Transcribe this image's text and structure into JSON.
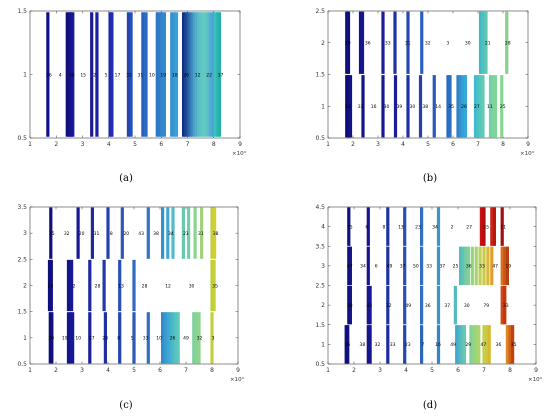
{
  "captions": [
    "(a)",
    "(b)",
    "(c)",
    "(d)"
  ],
  "chart_data": [
    {
      "type": "barcode",
      "xlim": [
        1,
        9
      ],
      "ylim": [
        0.5,
        1.5
      ],
      "xticks": [
        "1",
        "2",
        "3",
        "4",
        "5",
        "6",
        "7",
        "8",
        "9"
      ],
      "yticks": [
        "0.5",
        "1",
        "1.5"
      ],
      "x_exponent": "×10⁴",
      "rows": [
        {
          "y": 1,
          "labels": [
            "36",
            "4",
            "30",
            "15",
            "2",
            "5",
            "17",
            "32",
            "31",
            "10",
            "19",
            "18",
            "26",
            "12",
            "22",
            "37"
          ],
          "bars": [
            [
              1.68,
              "#10108a"
            ],
            [
              2.42,
              "#101078"
            ],
            [
              2.5,
              "#12127f"
            ],
            [
              2.56,
              "#141495"
            ],
            [
              2.63,
              "#181898"
            ],
            [
              3.35,
              "#1a1a9a"
            ],
            [
              3.55,
              "#1e1ea2"
            ],
            [
              4.05,
              "#1e24a8"
            ],
            [
              4.12,
              "#2030ac"
            ],
            [
              4.75,
              "#2244b2"
            ],
            [
              4.85,
              "#2450b8"
            ],
            [
              5.3,
              "#2860bc"
            ],
            [
              5.42,
              "#2a6cc2"
            ],
            [
              5.85,
              "#2c74c4"
            ],
            [
              5.93,
              "#2e7cc8"
            ],
            [
              6.02,
              "#3084cc"
            ],
            [
              6.12,
              "#328ace"
            ],
            [
              6.4,
              "#3490d0"
            ],
            [
              6.5,
              "#3698d2"
            ],
            [
              6.58,
              "#38a0d4"
            ],
            [
              6.85,
              "#123080"
            ],
            [
              6.93,
              "#1a4090"
            ],
            [
              7.02,
              "#2458a0"
            ],
            [
              7.1,
              "#3070b0"
            ],
            [
              7.18,
              "#3c88bc"
            ],
            [
              7.26,
              "#48a0c4"
            ],
            [
              7.34,
              "#50b0c8"
            ],
            [
              7.42,
              "#58bcc8"
            ],
            [
              7.5,
              "#5cc4c4"
            ],
            [
              7.58,
              "#60c8c0"
            ],
            [
              7.66,
              "#62ccbc"
            ],
            [
              7.74,
              "#60c4c8"
            ],
            [
              7.82,
              "#58b8d0"
            ],
            [
              7.9,
              "#50acd0"
            ],
            [
              7.98,
              "#48a4d0"
            ],
            [
              8.06,
              "#3ec0c0"
            ],
            [
              8.14,
              "#30b8b0"
            ],
            [
              8.22,
              "#28b0a8"
            ]
          ]
        }
      ]
    },
    {
      "type": "barcode",
      "xlim": [
        1,
        9
      ],
      "ylim": [
        0.5,
        2.5
      ],
      "xticks": [
        "1",
        "2",
        "3",
        "4",
        "5",
        "6",
        "7",
        "8",
        "9"
      ],
      "yticks": [
        "0.5",
        "1",
        "1.5",
        "2",
        "2.5"
      ],
      "x_exponent": "×10⁴",
      "rows": [
        {
          "y": 1,
          "labels": [
            "24",
            "33",
            "16",
            "30",
            "39",
            "30",
            "38",
            "14",
            "35",
            "26",
            "27",
            "11",
            "25"
          ],
          "bars": [
            [
              1.75,
              "#0c0c70"
            ],
            [
              1.8,
              "#0e0e78"
            ],
            [
              1.85,
              "#10107e"
            ],
            [
              1.9,
              "#121284"
            ],
            [
              2.4,
              "#14148a"
            ],
            [
              3.2,
              "#181892"
            ],
            [
              3.7,
              "#1c1c9a"
            ],
            [
              4.2,
              "#2030a4"
            ],
            [
              4.7,
              "#2440ac"
            ],
            [
              5.25,
              "#2858b8"
            ],
            [
              5.8,
              "#2a68c0"
            ],
            [
              5.88,
              "#2c70c4"
            ],
            [
              6.2,
              "#3080c8"
            ],
            [
              6.3,
              "#3290ce"
            ],
            [
              6.4,
              "#34a0d2"
            ],
            [
              6.5,
              "#36a8d4"
            ],
            [
              6.9,
              "#40b8cc"
            ],
            [
              7.0,
              "#4cc0c4"
            ],
            [
              7.1,
              "#58c8bc"
            ],
            [
              7.2,
              "#60ccb4"
            ],
            [
              7.5,
              "#70d0a8"
            ],
            [
              7.6,
              "#7cd4a0"
            ],
            [
              7.7,
              "#80d498"
            ],
            [
              7.95,
              "#88d490"
            ]
          ]
        },
        {
          "y": 2,
          "labels": [
            "20",
            "36",
            "33",
            "31",
            "32",
            "3",
            "30",
            "21",
            "28"
          ],
          "bars": [
            [
              1.75,
              "#0e0e78"
            ],
            [
              1.82,
              "#10107e"
            ],
            [
              2.3,
              "#14148a"
            ],
            [
              2.38,
              "#16168e"
            ],
            [
              3.2,
              "#1a2098"
            ],
            [
              3.68,
              "#1e34a2"
            ],
            [
              4.2,
              "#2448ae"
            ],
            [
              4.75,
              "#2a60bc"
            ],
            [
              7.1,
              "#40b8c8"
            ],
            [
              7.2,
              "#50c0bc"
            ],
            [
              7.32,
              "#60c8b0"
            ],
            [
              8.15,
              "#8cd090"
            ]
          ]
        }
      ]
    },
    {
      "type": "barcode",
      "xlim": [
        1,
        9
      ],
      "ylim": [
        0.5,
        3.5
      ],
      "xticks": [
        "1",
        "2",
        "3",
        "4",
        "5",
        "6",
        "7",
        "8",
        "9"
      ],
      "yticks": [
        "0.5",
        "1",
        "1.5",
        "2",
        "2.5",
        "3",
        "3.5"
      ],
      "x_exponent": "×10⁴",
      "rows": [
        {
          "y": 1,
          "labels": [
            "30",
            "19",
            "10",
            "27",
            "28",
            "8",
            "5",
            "33",
            "10",
            "26",
            "49",
            "32",
            "3"
          ],
          "bars": [
            [
              1.78,
              "#0e0e78"
            ],
            [
              1.84,
              "#10107e"
            ],
            [
              2.48,
              "#14148a"
            ],
            [
              2.56,
              "#161690"
            ],
            [
              2.64,
              "#181894"
            ],
            [
              3.3,
              "#1c2098"
            ],
            [
              3.9,
              "#2030a4"
            ],
            [
              4.45,
              "#2644ae"
            ],
            [
              5.0,
              "#2c58b8"
            ],
            [
              5.55,
              "#3070c4"
            ],
            [
              6.1,
              "#3488cc"
            ],
            [
              6.2,
              "#3898d0"
            ],
            [
              6.3,
              "#3ca4d0"
            ],
            [
              6.4,
              "#44b0cc"
            ],
            [
              6.5,
              "#4cbac8"
            ],
            [
              6.6,
              "#56c2c2"
            ],
            [
              6.7,
              "#5ec8ba"
            ],
            [
              7.3,
              "#80d09c"
            ],
            [
              7.4,
              "#88d494"
            ],
            [
              7.5,
              "#90d48c"
            ],
            [
              8.0,
              "#c0d040"
            ]
          ]
        },
        {
          "y": 2,
          "labels": [
            "24",
            "2",
            "28",
            "13",
            "28",
            "12",
            "30",
            "35"
          ],
          "bars": [
            [
              1.75,
              "#0e0e78"
            ],
            [
              1.82,
              "#10107e"
            ],
            [
              2.48,
              "#14148a"
            ],
            [
              2.6,
              "#181894"
            ],
            [
              3.3,
              "#1e28a0"
            ],
            [
              3.85,
              "#2238a8"
            ],
            [
              4.45,
              "#2850b6"
            ],
            [
              5.0,
              "#2e68c0"
            ],
            [
              8.0,
              "#b8d040"
            ],
            [
              8.08,
              "#c8d030"
            ]
          ]
        },
        {
          "y": 3,
          "labels": [
            "35",
            "32",
            "20",
            "31",
            "8",
            "20",
            "43",
            "38",
            "34",
            "23",
            "31",
            "38"
          ],
          "bars": [
            [
              1.8,
              "#10107e"
            ],
            [
              2.85,
              "#181894"
            ],
            [
              3.4,
              "#1e28a0"
            ],
            [
              4.0,
              "#2440ac"
            ],
            [
              4.55,
              "#2c58b8"
            ],
            [
              5.55,
              "#3474c6"
            ],
            [
              6.1,
              "#3890ce"
            ],
            [
              6.3,
              "#40a8d0"
            ],
            [
              6.5,
              "#50bcc6"
            ],
            [
              6.9,
              "#68c8b0"
            ],
            [
              7.1,
              "#78cea4"
            ],
            [
              7.35,
              "#88d494"
            ],
            [
              7.6,
              "#a0d478"
            ],
            [
              8.0,
              "#c0d040"
            ],
            [
              8.1,
              "#d0d030"
            ]
          ]
        }
      ]
    },
    {
      "type": "barcode",
      "xlim": [
        1,
        9
      ],
      "ylim": [
        0.5,
        4.5
      ],
      "xticks": [
        "1",
        "2",
        "3",
        "4",
        "5",
        "6",
        "7",
        "8",
        "9"
      ],
      "yticks": [
        "0.5",
        "1",
        "1.5",
        "2",
        "2.5",
        "3",
        "3.5",
        "4",
        "4.5"
      ],
      "x_exponent": "×10⁴",
      "rows": [
        {
          "y": 1,
          "labels": [
            "36",
            "38",
            "32",
            "33",
            "23",
            "7",
            "16",
            "49",
            "29",
            "47",
            "36",
            "35"
          ],
          "bars": [
            [
              1.7,
              "#0e0e78"
            ],
            [
              1.76,
              "#10107e"
            ],
            [
              2.55,
              "#14148a"
            ],
            [
              2.62,
              "#161690"
            ],
            [
              3.3,
              "#1c2c9c"
            ],
            [
              3.95,
              "#2448aa"
            ],
            [
              4.6,
              "#2c66b8"
            ],
            [
              5.25,
              "#3484c8"
            ],
            [
              5.95,
              "#40a8cc"
            ],
            [
              6.05,
              "#4cb6c4"
            ],
            [
              6.15,
              "#5cc0b8"
            ],
            [
              6.25,
              "#6cc8ac"
            ],
            [
              6.5,
              "#80d098"
            ],
            [
              6.6,
              "#90d488"
            ],
            [
              6.7,
              "#a0d478"
            ],
            [
              6.8,
              "#b0d468"
            ],
            [
              7.0,
              "#c0d050"
            ],
            [
              7.1,
              "#d0c840"
            ],
            [
              7.2,
              "#d8b830"
            ],
            [
              7.9,
              "#e08820"
            ],
            [
              8.0,
              "#d06018"
            ],
            [
              8.1,
              "#c04010"
            ]
          ]
        },
        {
          "y": 2,
          "labels": [
            "38",
            "43",
            "32",
            "49",
            "36",
            "37",
            "30",
            "79",
            "33"
          ],
          "bars": [
            [
              1.8,
              "#10107e"
            ],
            [
              1.86,
              "#121284"
            ],
            [
              2.55,
              "#161690"
            ],
            [
              2.62,
              "#181894"
            ],
            [
              3.3,
              "#20349e"
            ],
            [
              3.95,
              "#2850ae"
            ],
            [
              4.6,
              "#3070be"
            ],
            [
              5.25,
              "#3c96ca"
            ],
            [
              5.9,
              "#54bcc0"
            ],
            [
              7.7,
              "#d04818"
            ],
            [
              7.8,
              "#c03810"
            ]
          ]
        },
        {
          "y": 3,
          "labels": [
            "47",
            "34",
            "6",
            "49",
            "37",
            "50",
            "33",
            "37",
            "25",
            "36",
            "33",
            "47",
            "19"
          ],
          "bars": [
            [
              1.8,
              "#10107e"
            ],
            [
              1.86,
              "#121284"
            ],
            [
              2.55,
              "#161690"
            ],
            [
              3.3,
              "#20349e"
            ],
            [
              3.95,
              "#2850ae"
            ],
            [
              4.6,
              "#3070be"
            ],
            [
              5.25,
              "#3c96ca"
            ],
            [
              6.1,
              "#54bcc0"
            ],
            [
              6.2,
              "#64c4b4"
            ],
            [
              6.3,
              "#74cca4"
            ],
            [
              6.4,
              "#84d094"
            ],
            [
              6.55,
              "#94d484"
            ],
            [
              6.7,
              "#a8d470"
            ],
            [
              6.85,
              "#bcd05c"
            ],
            [
              7.0,
              "#ccc848"
            ],
            [
              7.15,
              "#d8b838"
            ],
            [
              7.3,
              "#e0a028"
            ],
            [
              7.7,
              "#d87020"
            ],
            [
              7.8,
              "#c85818"
            ],
            [
              7.9,
              "#b84010"
            ]
          ]
        },
        {
          "y": 4,
          "labels": [
            "75",
            "6",
            "8",
            "13",
            "23",
            "34",
            "2",
            "27",
            "55",
            "11"
          ],
          "bars": [
            [
              1.8,
              "#10107e"
            ],
            [
              2.55,
              "#161690"
            ],
            [
              3.3,
              "#20349e"
            ],
            [
              3.95,
              "#2850ae"
            ],
            [
              4.6,
              "#3070be"
            ],
            [
              5.25,
              "#3c96ca"
            ],
            [
              6.9,
              "#c81010"
            ],
            [
              7.0,
              "#b01010"
            ],
            [
              7.3,
              "#c82818"
            ],
            [
              7.4,
              "#b81810"
            ],
            [
              7.7,
              "#a01010"
            ]
          ]
        }
      ]
    }
  ]
}
